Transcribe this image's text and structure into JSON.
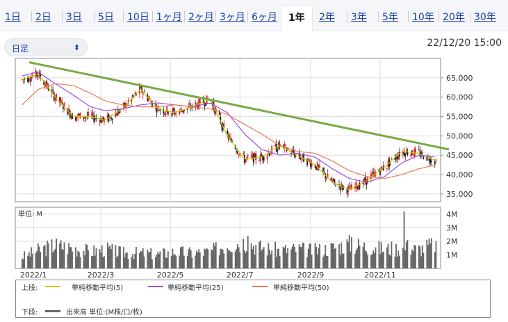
{
  "tabs": [
    {
      "label": "1日",
      "active": false
    },
    {
      "label": "2日",
      "active": false
    },
    {
      "label": "3日",
      "active": false
    },
    {
      "label": "5日",
      "active": false
    },
    {
      "label": "10日",
      "active": false
    },
    {
      "label": "1ヶ月",
      "active": false
    },
    {
      "label": "2ヶ月",
      "active": false
    },
    {
      "label": "3ヶ月",
      "active": false
    },
    {
      "label": "6ヶ月",
      "active": false
    },
    {
      "label": "1年",
      "active": true
    },
    {
      "label": "2年",
      "active": false
    },
    {
      "label": "3年",
      "active": false
    },
    {
      "label": "5年",
      "active": false
    },
    {
      "label": "10年",
      "active": false
    },
    {
      "label": "20年",
      "active": false
    },
    {
      "label": "30年",
      "active": false
    }
  ],
  "interval_select": {
    "value": "日足",
    "icon": "updown-chevron-icon"
  },
  "timestamp": "22/12/20 15:00",
  "colors": {
    "up": "#e02020",
    "down": "#222222",
    "ma5": "#c8c800",
    "ma25": "#9b4fe0",
    "ma50": "#e87a55",
    "trend": "#77aa44",
    "volume": "#666666"
  },
  "chart_data": [
    {
      "type": "candlestick",
      "x_ticks": [
        "2022/1",
        "2022/3",
        "2022/5",
        "2022/7",
        "2022/9",
        "2022/11"
      ],
      "y_ticks": [
        "35,000",
        "40,000",
        "45,000",
        "50,000",
        "55,000",
        "60,000",
        "65,000"
      ],
      "ylim": [
        33000,
        70000
      ],
      "trendline": {
        "from": {
          "x": "2021/12",
          "y": 69000
        },
        "to": {
          "x": "2022/12",
          "y": 46500
        }
      },
      "series": [
        {
          "name": "単純移動平均(5)",
          "points": [
            [
              "2021/12/22",
              64500
            ],
            [
              "2022/1/5",
              66000
            ],
            [
              "2022/1/20",
              60000
            ],
            [
              "2022/2/5",
              55000
            ],
            [
              "2022/2/20",
              55000
            ],
            [
              "2022/3/5",
              54000
            ],
            [
              "2022/3/20",
              57000
            ],
            [
              "2022/4/5",
              62000
            ],
            [
              "2022/4/20",
              57000
            ],
            [
              "2022/5/5",
              56000
            ],
            [
              "2022/5/20",
              57500
            ],
            [
              "2022/6/5",
              59500
            ],
            [
              "2022/6/20",
              50000
            ],
            [
              "2022/7/5",
              44000
            ],
            [
              "2022/7/20",
              44500
            ],
            [
              "2022/8/5",
              47500
            ],
            [
              "2022/8/20",
              45000
            ],
            [
              "2022/9/5",
              42500
            ],
            [
              "2022/9/20",
              38000
            ],
            [
              "2022/10/5",
              36000
            ],
            [
              "2022/10/20",
              38500
            ],
            [
              "2022/11/5",
              42000
            ],
            [
              "2022/11/20",
              46000
            ],
            [
              "2022/12/5",
              45500
            ],
            [
              "2022/12/20",
              43500
            ]
          ]
        },
        {
          "name": "単純移動平均(25)",
          "points": [
            [
              "2021/12/22",
              65500
            ],
            [
              "2022/1/5",
              66500
            ],
            [
              "2022/1/20",
              63500
            ],
            [
              "2022/2/5",
              60500
            ],
            [
              "2022/2/20",
              57500
            ],
            [
              "2022/3/5",
              56500
            ],
            [
              "2022/3/20",
              57000
            ],
            [
              "2022/4/5",
              58000
            ],
            [
              "2022/4/20",
              58500
            ],
            [
              "2022/5/5",
              58000
            ],
            [
              "2022/5/20",
              57500
            ],
            [
              "2022/6/5",
              58500
            ],
            [
              "2022/6/20",
              56000
            ],
            [
              "2022/7/5",
              50500
            ],
            [
              "2022/7/20",
              46500
            ],
            [
              "2022/8/5",
              45000
            ],
            [
              "2022/8/20",
              45500
            ],
            [
              "2022/9/5",
              44500
            ],
            [
              "2022/9/20",
              41500
            ],
            [
              "2022/10/5",
              39000
            ],
            [
              "2022/10/20",
              38000
            ],
            [
              "2022/11/5",
              39500
            ],
            [
              "2022/11/20",
              43000
            ],
            [
              "2022/12/5",
              45000
            ],
            [
              "2022/12/20",
              44500
            ]
          ]
        },
        {
          "name": "単純移動平均(50)",
          "points": [
            [
              "2021/12/22",
              58000
            ],
            [
              "2022/1/5",
              62000
            ],
            [
              "2022/1/20",
              63500
            ],
            [
              "2022/2/5",
              63000
            ],
            [
              "2022/2/20",
              61000
            ],
            [
              "2022/3/5",
              59000
            ],
            [
              "2022/3/20",
              58000
            ],
            [
              "2022/4/5",
              57500
            ],
            [
              "2022/4/20",
              57500
            ],
            [
              "2022/5/5",
              58000
            ],
            [
              "2022/5/20",
              57500
            ],
            [
              "2022/6/5",
              57000
            ],
            [
              "2022/6/20",
              55500
            ],
            [
              "2022/7/5",
              53000
            ],
            [
              "2022/7/20",
              50500
            ],
            [
              "2022/8/5",
              47500
            ],
            [
              "2022/8/20",
              46000
            ],
            [
              "2022/9/5",
              45500
            ],
            [
              "2022/9/20",
              43500
            ],
            [
              "2022/10/5",
              41000
            ],
            [
              "2022/10/20",
              39500
            ],
            [
              "2022/11/5",
              39000
            ],
            [
              "2022/11/20",
              40000
            ],
            [
              "2022/12/5",
              41500
            ],
            [
              "2022/12/20",
              42500
            ]
          ]
        }
      ]
    },
    {
      "type": "bar",
      "title": "単位: M",
      "y_ticks": [
        "1M",
        "2M",
        "3M",
        "4M"
      ],
      "ylim": [
        0,
        4.5
      ],
      "volume_points": [
        [
          "2021/12/22",
          0.9
        ],
        [
          "2022/1/5",
          1.4
        ],
        [
          "2022/1/20",
          1.8
        ],
        [
          "2022/2/5",
          1.6
        ],
        [
          "2022/2/20",
          1.3
        ],
        [
          "2022/3/5",
          1.5
        ],
        [
          "2022/3/20",
          1.2
        ],
        [
          "2022/4/5",
          1.2
        ],
        [
          "2022/4/20",
          1.1
        ],
        [
          "2022/5/5",
          1.3
        ],
        [
          "2022/5/20",
          1.2
        ],
        [
          "2022/6/5",
          1.3
        ],
        [
          "2022/6/20",
          1.9
        ],
        [
          "2022/7/5",
          2.1
        ],
        [
          "2022/7/20",
          1.6
        ],
        [
          "2022/8/5",
          1.4
        ],
        [
          "2022/8/20",
          1.5
        ],
        [
          "2022/9/5",
          1.4
        ],
        [
          "2022/9/20",
          1.6
        ],
        [
          "2022/10/5",
          1.9
        ],
        [
          "2022/10/20",
          1.7
        ],
        [
          "2022/11/5",
          1.5
        ],
        [
          "2022/11/20",
          1.6
        ],
        [
          "2022/12/5",
          1.5
        ],
        [
          "2022/12/20",
          1.9
        ]
      ],
      "spikes": [
        [
          "2022/11/22",
          4.2
        ],
        [
          "2022/11/25",
          2.1
        ],
        [
          "2022/12/20",
          2.0
        ],
        [
          "2022/7/8",
          2.4
        ],
        [
          "2022/10/7",
          2.3
        ]
      ]
    }
  ],
  "legend": {
    "upper_label": "上段:",
    "lower_label": "下段:",
    "ma5": "単純移動平均(5)",
    "ma25": "単純移動平均(25)",
    "ma50": "単純移動平均(50)",
    "volume": "出来高 単位:(M株/口/枚)"
  }
}
